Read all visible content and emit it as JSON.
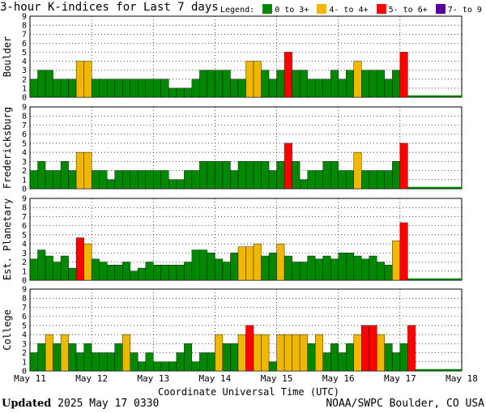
{
  "title": "3-hour K-indices for Last 7 days",
  "legend": {
    "label": "Legend:",
    "items": [
      {
        "text": "0 to 3+",
        "color": "#008800"
      },
      {
        "text": "4- to 4+",
        "color": "#f0b800"
      },
      {
        "text": "5- to 6+",
        "color": "#ff0000"
      },
      {
        "text": "7- to 9",
        "color": "#550099"
      }
    ]
  },
  "footer": {
    "updated_label": "Updated",
    "updated_value": "2025 May 17 0330",
    "source": "NOAA/SWPC Boulder, CO USA"
  },
  "chart_data": {
    "type": "bar",
    "xlabel": "Coordinate Universal Time (UTC)",
    "x_ticks": [
      "May 11",
      "May 12",
      "May 13",
      "May 14",
      "May 15",
      "May 16",
      "May 17",
      "May 18"
    ],
    "ylim": [
      0,
      9
    ],
    "y_ticks": [
      "0",
      "1",
      "2",
      "3",
      "4",
      "5",
      "6",
      "7",
      "8",
      "9"
    ],
    "slots_per_panel": 56,
    "color_thresholds": [
      {
        "max": 3.5,
        "color": "#008800"
      },
      {
        "max": 4.5,
        "color": "#f0b800"
      },
      {
        "max": 6.5,
        "color": "#ff0000"
      },
      {
        "max": 9,
        "color": "#550099"
      }
    ],
    "panels": [
      {
        "name": "Boulder",
        "values": [
          2,
          3,
          3,
          2,
          2,
          2,
          4,
          4,
          2,
          2,
          2,
          2,
          2,
          2,
          2,
          2,
          2,
          2,
          1,
          1,
          1,
          2,
          3,
          3,
          3,
          3,
          2,
          2,
          4,
          4,
          3,
          2,
          3,
          5,
          3,
          3,
          2,
          2,
          2,
          3,
          2,
          3,
          4,
          3,
          3,
          3,
          2,
          3,
          5
        ]
      },
      {
        "name": "Fredericksburg",
        "values": [
          2,
          3,
          2,
          2,
          3,
          2,
          4,
          4,
          2,
          2,
          1,
          2,
          2,
          2,
          2,
          2,
          2,
          2,
          1,
          1,
          2,
          2,
          3,
          3,
          3,
          3,
          2,
          3,
          3,
          3,
          3,
          2,
          3,
          5,
          3,
          1,
          2,
          2,
          3,
          3,
          2,
          2,
          4,
          2,
          2,
          2,
          2,
          3,
          5
        ]
      },
      {
        "name": "Est. Planetary",
        "values": [
          2.33,
          3.33,
          2.67,
          2.0,
          2.67,
          1.33,
          4.67,
          4.0,
          2.33,
          2.0,
          1.67,
          1.67,
          2.0,
          1.0,
          1.33,
          2.0,
          1.67,
          1.67,
          1.67,
          1.67,
          2.0,
          3.33,
          3.33,
          3.0,
          2.33,
          2.0,
          3.0,
          3.67,
          3.67,
          4.0,
          2.67,
          3.0,
          4.0,
          2.67,
          2.0,
          2.0,
          2.67,
          2.33,
          2.67,
          2.33,
          3.0,
          3.0,
          2.67,
          2.33,
          2.67,
          2.0,
          1.67,
          4.33,
          6.33
        ]
      },
      {
        "name": "College",
        "values": [
          2,
          3,
          4,
          3,
          4,
          3,
          2,
          3,
          2,
          2,
          2,
          3,
          4,
          2,
          1,
          2,
          1,
          1,
          1,
          2,
          3,
          1,
          2,
          2,
          4,
          3,
          3,
          4,
          5,
          4,
          4,
          1,
          4,
          4,
          4,
          4,
          3,
          4,
          2,
          3,
          2,
          3,
          4,
          5,
          5,
          4,
          3,
          2,
          3,
          5
        ]
      }
    ]
  }
}
